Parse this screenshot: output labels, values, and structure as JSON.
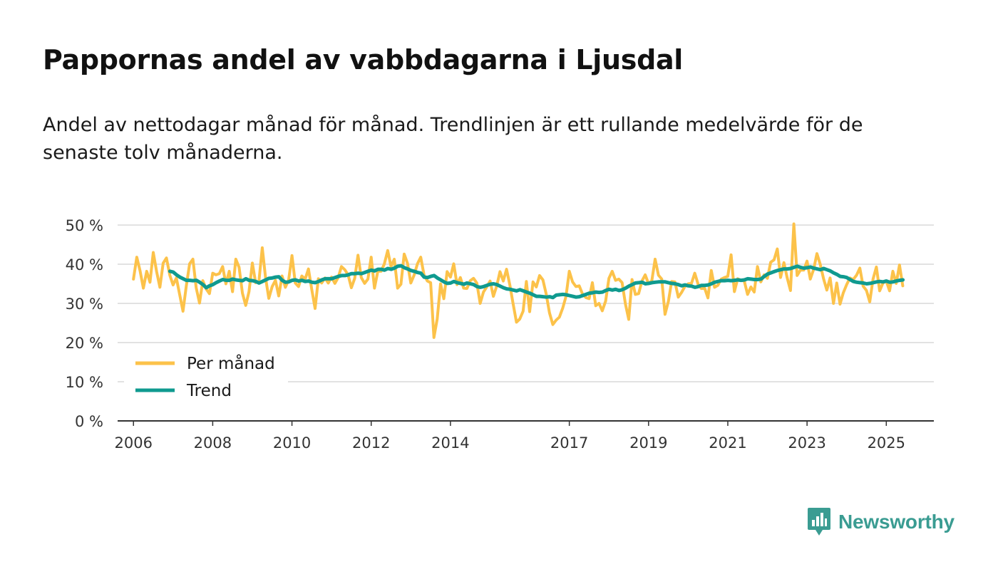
{
  "chart_data": {
    "type": "line",
    "title": "Pappornas andel av vabbdagarna i Ljusdal",
    "subtitle": "Andel av nettodagar månad för månad. Trendlinjen är ett rullande medelvärde för de senaste tolv månaderna.",
    "xlabel": "",
    "ylabel": "",
    "xlim": [
      2005.6,
      2026.2
    ],
    "ylim": [
      0,
      50
    ],
    "x_ticks": [
      2006,
      2008,
      2010,
      2012,
      2014,
      2017,
      2019,
      2021,
      2023,
      2025
    ],
    "y_ticks": [
      0,
      10,
      20,
      30,
      40,
      50
    ],
    "y_tick_labels": [
      "0 %",
      "10 %",
      "20 %",
      "30 %",
      "40 %",
      "50 %"
    ],
    "grid": true,
    "legend_position": "lower-left",
    "series": [
      {
        "name": "Per månad",
        "color": "#fcc24a",
        "start": 2006.0,
        "step": 0.08333,
        "values": [
          36.2,
          41.8,
          38.3,
          33.9,
          38.2,
          35.4,
          43.0,
          38.1,
          34.1,
          40.3,
          41.6,
          37.2,
          34.7,
          36.5,
          32.2,
          28.0,
          34.4,
          40.1,
          41.3,
          34.0,
          30.1,
          35.8,
          33.7,
          32.5,
          37.7,
          37.3,
          37.6,
          39.4,
          35.0,
          38.2,
          33.0,
          41.3,
          39.2,
          32.6,
          29.5,
          33.0,
          40.3,
          35.3,
          35.6,
          44.2,
          36.6,
          31.3,
          34.3,
          35.9,
          31.9,
          37.0,
          34.1,
          36.0,
          42.2,
          35.2,
          34.3,
          37.0,
          36.2,
          38.8,
          33.6,
          28.7,
          36.3,
          35.2,
          36.5,
          35.2,
          36.7,
          35.1,
          36.6,
          39.4,
          38.6,
          37.3,
          34.0,
          36.4,
          42.3,
          36.6,
          35.1,
          36.2,
          41.8,
          33.9,
          38.2,
          38.2,
          40.1,
          43.5,
          39.4,
          41.3,
          33.9,
          34.9,
          42.6,
          40.2,
          35.2,
          37.2,
          40.1,
          41.8,
          37.3,
          35.7,
          35.3,
          21.3,
          26.0,
          35.0,
          31.2,
          38.1,
          36.7,
          40.1,
          34.8,
          36.6,
          33.9,
          33.8,
          35.8,
          36.4,
          35.2,
          30.0,
          32.9,
          34.2,
          35.7,
          31.8,
          34.4,
          38.1,
          35.7,
          38.7,
          34.7,
          29.8,
          25.2,
          26.0,
          28.0,
          35.6,
          27.9,
          35.5,
          34.2,
          37.1,
          36.0,
          32.4,
          27.6,
          24.6,
          25.7,
          26.5,
          28.8,
          31.8,
          38.2,
          35.5,
          34.3,
          34.5,
          32.4,
          31.5,
          31.2,
          35.3,
          29.4,
          30.0,
          28.1,
          30.6,
          36.4,
          38.2,
          35.9,
          36.2,
          35.3,
          29.8,
          25.9,
          36.1,
          32.3,
          32.5,
          35.7,
          37.3,
          35.0,
          35.8,
          41.3,
          37.2,
          36.2,
          27.2,
          30.5,
          35.6,
          35.5,
          31.6,
          32.8,
          34.3,
          35.0,
          35.1,
          37.7,
          34.9,
          33.8,
          33.9,
          31.4,
          38.4,
          34.1,
          34.6,
          36.2,
          36.6,
          36.9,
          42.4,
          33.0,
          36.3,
          35.9,
          35.7,
          32.3,
          34.2,
          32.9,
          39.4,
          35.5,
          37.3,
          36.4,
          40.5,
          41.1,
          43.9,
          36.6,
          40.4,
          36.5,
          33.3,
          50.3,
          37.1,
          38.5,
          38.5,
          40.8,
          36.2,
          38.7,
          42.7,
          40.0,
          36.3,
          33.4,
          36.5,
          30.0,
          35.2,
          29.8,
          32.7,
          34.8,
          36.5,
          36.1,
          37.2,
          39.0,
          34.4,
          33.3,
          30.4,
          36.2,
          39.3,
          33.2,
          35.2,
          35.7,
          33.2,
          38.2,
          35.1,
          39.8,
          34.5
        ]
      },
      {
        "name": "Trend",
        "color": "#0f9a8f",
        "start": 2006.92,
        "step": 0.08333,
        "values": [
          38.2,
          38.0,
          37.3,
          36.7,
          36.3,
          35.9,
          35.9,
          35.8,
          35.9,
          35.4,
          34.8,
          34.0,
          34.5,
          34.8,
          35.3,
          35.7,
          36.1,
          35.9,
          35.9,
          36.2,
          36.0,
          35.9,
          35.8,
          36.3,
          35.9,
          35.8,
          35.6,
          35.2,
          35.6,
          36.0,
          36.4,
          36.5,
          36.7,
          36.8,
          35.9,
          35.4,
          35.5,
          35.9,
          36.0,
          35.7,
          35.9,
          35.6,
          35.7,
          35.4,
          35.3,
          35.6,
          36.0,
          36.3,
          36.3,
          36.3,
          36.6,
          36.9,
          37.1,
          37.1,
          37.3,
          37.6,
          37.6,
          37.7,
          37.6,
          37.9,
          38.2,
          38.5,
          38.3,
          38.7,
          38.7,
          38.5,
          38.9,
          38.7,
          39.0,
          39.5,
          39.6,
          39.1,
          38.8,
          38.4,
          38.2,
          37.9,
          37.7,
          36.7,
          36.6,
          36.9,
          37.1,
          36.5,
          36.0,
          35.5,
          35.1,
          35.2,
          35.6,
          35.3,
          35.1,
          34.9,
          35.2,
          35.0,
          34.8,
          34.3,
          34.1,
          34.3,
          34.6,
          34.9,
          35.0,
          34.8,
          34.4,
          34.0,
          33.7,
          33.6,
          33.4,
          33.2,
          33.5,
          33.2,
          32.9,
          32.6,
          32.2,
          31.8,
          31.8,
          31.7,
          31.6,
          31.7,
          31.5,
          32.1,
          32.2,
          32.3,
          32.2,
          32.0,
          31.8,
          31.6,
          31.7,
          32.0,
          32.3,
          32.6,
          32.7,
          32.9,
          32.8,
          32.9,
          33.3,
          33.6,
          33.4,
          33.6,
          33.3,
          33.5,
          33.9,
          34.4,
          34.8,
          35.2,
          35.3,
          35.4,
          35.0,
          35.1,
          35.3,
          35.4,
          35.5,
          35.5,
          35.5,
          35.3,
          35.1,
          35.0,
          34.8,
          34.5,
          34.7,
          34.5,
          34.4,
          34.1,
          34.3,
          34.6,
          34.6,
          34.7,
          35.0,
          35.4,
          35.6,
          35.8,
          35.8,
          35.9,
          35.8,
          35.9,
          36.0,
          35.9,
          36.0,
          36.3,
          36.2,
          36.1,
          36.1,
          36.2,
          36.9,
          37.5,
          37.8,
          38.1,
          38.4,
          38.6,
          38.8,
          38.8,
          38.9,
          39.2,
          39.5,
          39.2,
          39.0,
          39.1,
          39.3,
          39.0,
          38.8,
          38.6,
          38.9,
          38.6,
          38.3,
          37.8,
          37.4,
          36.9,
          36.8,
          36.6,
          36.1,
          35.6,
          35.4,
          35.3,
          35.2,
          35.0,
          35.1,
          35.3,
          35.5,
          35.6,
          35.5,
          35.7,
          35.4,
          35.5,
          35.7,
          35.9,
          36.0
        ]
      }
    ]
  },
  "brand": {
    "name": "Newsworthy",
    "icon": "newsworthy-logo-icon",
    "color": "#3a9c92"
  }
}
